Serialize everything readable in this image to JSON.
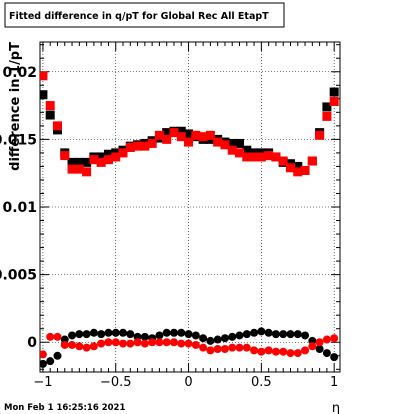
{
  "chart_data": {
    "type": "scatter",
    "title": "Fitted difference in q/pT for Global Rec All EtapT",
    "xlabel": "η",
    "ylabel": "difference in 1/pT",
    "footer": "Mon Feb  1 16:25:16 2021",
    "xlim": [
      -1.02,
      1.04
    ],
    "ylim": [
      -0.0022,
      0.0222
    ],
    "grid": true,
    "x_ticks": [
      {
        "v": -1.0,
        "label": "−1"
      },
      {
        "v": -0.5,
        "label": "−0.5"
      },
      {
        "v": 0.0,
        "label": "0"
      },
      {
        "v": 0.5,
        "label": "0.5"
      },
      {
        "v": 1.0,
        "label": "1"
      }
    ],
    "y_ticks": [
      {
        "v": 0.0,
        "label": "0"
      },
      {
        "v": 0.005,
        "label": "0.005"
      },
      {
        "v": 0.01,
        "label": "0.01"
      },
      {
        "v": 0.015,
        "label": "0.015"
      },
      {
        "v": 0.02,
        "label": "0.02"
      }
    ],
    "x": [
      -1.0,
      -0.95,
      -0.9,
      -0.85,
      -0.8,
      -0.75,
      -0.7,
      -0.65,
      -0.6,
      -0.55,
      -0.5,
      -0.45,
      -0.4,
      -0.35,
      -0.3,
      -0.25,
      -0.2,
      -0.15,
      -0.1,
      -0.05,
      0.0,
      0.05,
      0.1,
      0.15,
      0.2,
      0.25,
      0.3,
      0.35,
      0.4,
      0.45,
      0.5,
      0.55,
      0.6,
      0.65,
      0.7,
      0.75,
      0.8,
      0.85,
      0.9,
      0.95,
      1.0
    ],
    "series": [
      {
        "marker": "square",
        "color": "#000000",
        "values": [
          0.0183,
          0.0168,
          0.0157,
          0.014,
          0.0133,
          0.0133,
          0.0133,
          0.0137,
          0.0137,
          0.0139,
          0.014,
          0.0142,
          0.0145,
          0.0146,
          0.0147,
          0.0149,
          0.0151,
          0.0155,
          0.0156,
          0.0156,
          0.0154,
          0.0152,
          0.015,
          0.015,
          0.015,
          0.0148,
          0.0147,
          0.0147,
          0.0142,
          0.014,
          0.014,
          0.014,
          0.0137,
          0.0133,
          0.0132,
          0.013,
          0.0127,
          0.0134,
          0.0155,
          0.0174,
          0.0185
        ]
      },
      {
        "marker": "square",
        "color": "#ff0000",
        "values": [
          0.0197,
          0.0175,
          0.016,
          0.0138,
          0.0128,
          0.0128,
          0.0126,
          0.0135,
          0.0133,
          0.0135,
          0.0137,
          0.014,
          0.0144,
          0.0145,
          0.0145,
          0.0147,
          0.0153,
          0.015,
          0.0155,
          0.0152,
          0.0148,
          0.0153,
          0.0152,
          0.0153,
          0.0148,
          0.0146,
          0.0142,
          0.014,
          0.0137,
          0.0137,
          0.0137,
          0.0138,
          0.0137,
          0.0134,
          0.0129,
          0.0126,
          0.0127,
          0.0134,
          0.0153,
          0.0167,
          0.0178
        ]
      },
      {
        "marker": "circle",
        "color": "#000000",
        "values": [
          -0.0016,
          -0.0014,
          -0.001,
          0.0002,
          0.0005,
          0.0006,
          0.0006,
          0.0007,
          0.0006,
          0.0007,
          0.0007,
          0.0007,
          0.0006,
          0.0004,
          0.0004,
          0.0003,
          0.0005,
          0.0007,
          0.0007,
          0.0007,
          0.0006,
          0.0005,
          0.0003,
          0.0001,
          0.0002,
          0.0003,
          0.0004,
          0.0005,
          0.0006,
          0.0007,
          0.0008,
          0.0007,
          0.0006,
          0.0006,
          0.0006,
          0.0006,
          0.0005,
          0.0001,
          -0.0005,
          -0.0008,
          -0.0011
        ]
      },
      {
        "marker": "circle",
        "color": "#ff0000",
        "values": [
          -0.0009,
          0.0004,
          0.0004,
          -0.0002,
          -0.0002,
          -0.0003,
          -0.0004,
          -0.0003,
          -0.0001,
          0.0,
          0.0,
          -0.0001,
          -0.0001,
          0.0,
          -0.0001,
          0.0,
          0.0,
          0.0,
          0.0,
          -0.0001,
          -0.0001,
          -0.0002,
          -0.0004,
          -0.0006,
          -0.0005,
          -0.0005,
          -0.0004,
          -0.0004,
          -0.0004,
          -0.0006,
          -0.0007,
          -0.0006,
          -0.0007,
          -0.0007,
          -0.0008,
          -0.0008,
          -0.0006,
          -0.0003,
          0.0,
          0.0002,
          0.0003
        ]
      }
    ]
  }
}
